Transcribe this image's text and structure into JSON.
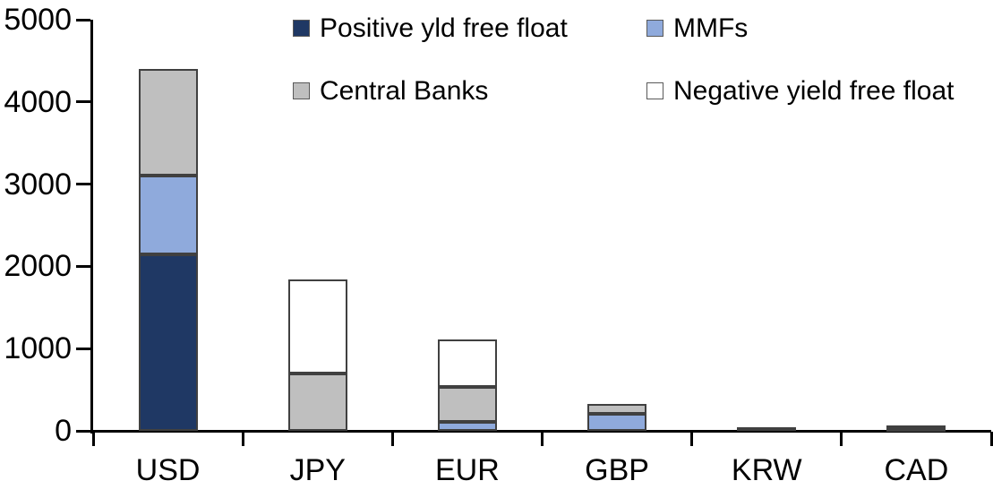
{
  "chart_data": {
    "type": "bar",
    "stacked": true,
    "title": "",
    "xlabel": "",
    "ylabel": "",
    "categories": [
      "USD",
      "JPY",
      "EUR",
      "GBP",
      "KRW",
      "CAD"
    ],
    "series": [
      {
        "name": "Positive yld free float",
        "color": "#1F3864",
        "values": [
          2150,
          0,
          0,
          0,
          40,
          35
        ]
      },
      {
        "name": "MMFs",
        "color": "#8FAADC",
        "values": [
          950,
          0,
          110,
          210,
          0,
          0
        ]
      },
      {
        "name": "Central Banks",
        "color": "#BFBFBF",
        "values": [
          1300,
          700,
          420,
          120,
          0,
          30
        ]
      },
      {
        "name": "Negative yield free float",
        "color": "#FFFFFF",
        "values": [
          0,
          1140,
          580,
          0,
          0,
          0
        ]
      }
    ],
    "totals": [
      4400,
      1840,
      1110,
      330,
      40,
      65
    ],
    "ylim": [
      0,
      5000
    ],
    "yticks": [
      0,
      1000,
      2000,
      3000,
      4000,
      5000
    ],
    "grid": false,
    "legend_position": "top"
  },
  "colors": {
    "axis": "#000000",
    "segment_border": "#404040",
    "background": "#FFFFFF",
    "navy": "#1F3864",
    "light_blue": "#8FAADC",
    "gray": "#BFBFBF",
    "white": "#FFFFFF"
  }
}
